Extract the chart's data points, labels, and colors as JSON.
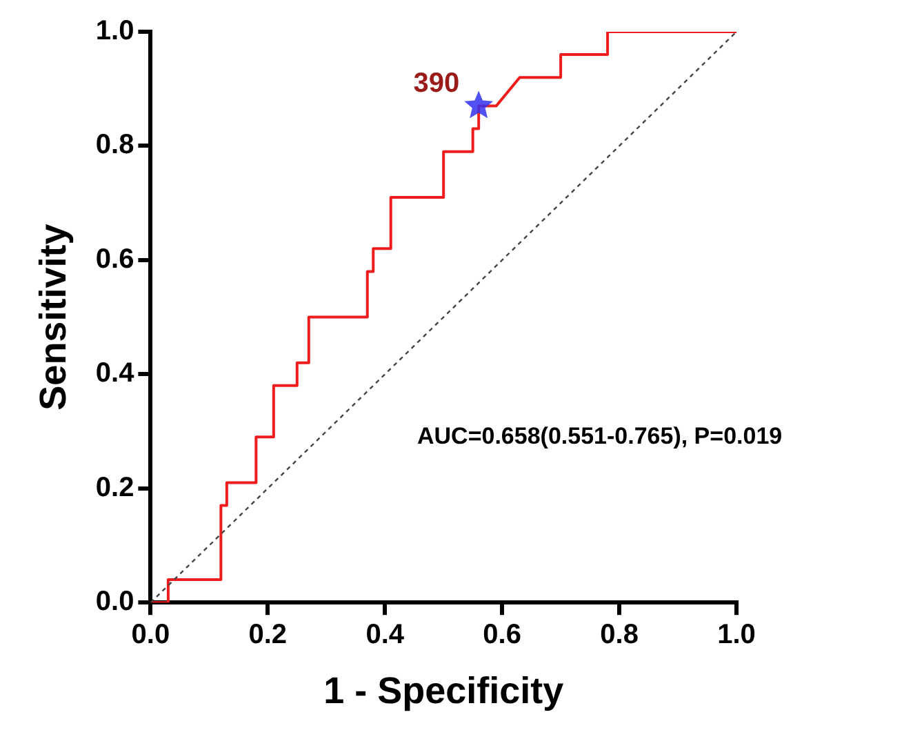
{
  "chart_data": {
    "type": "line",
    "xlabel": "1 - Specificity",
    "ylabel": "Sensitivity",
    "xlim": [
      0,
      1
    ],
    "ylim": [
      0,
      1
    ],
    "xticks": [
      {
        "value": 0,
        "label": "0.0"
      },
      {
        "value": 0.2,
        "label": "0.2"
      },
      {
        "value": 0.4,
        "label": "0.4"
      },
      {
        "value": 0.6,
        "label": "0.6"
      },
      {
        "value": 0.8,
        "label": "0.8"
      },
      {
        "value": 1,
        "label": "1.0"
      }
    ],
    "yticks": [
      {
        "value": 0,
        "label": "0.0"
      },
      {
        "value": 0.2,
        "label": "0.2"
      },
      {
        "value": 0.4,
        "label": "0.4"
      },
      {
        "value": 0.6,
        "label": "0.6"
      },
      {
        "value": 0.8,
        "label": "0.8"
      },
      {
        "value": 1,
        "label": "1.0"
      }
    ],
    "grid": false,
    "legend": false,
    "series": [
      {
        "color": "#ee1c1c",
        "marker": "none",
        "line_style": "solid",
        "x": [
          0,
          0.03,
          0.03,
          0.12,
          0.12,
          0.13,
          0.13,
          0.18,
          0.18,
          0.21,
          0.21,
          0.25,
          0.25,
          0.27,
          0.27,
          0.37,
          0.37,
          0.38,
          0.38,
          0.41,
          0.41,
          0.5,
          0.5,
          0.55,
          0.55,
          0.56,
          0.56,
          0.59,
          0.63,
          0.7,
          0.7,
          0.78,
          0.78,
          1.0
        ],
        "values": [
          0,
          0,
          0.04,
          0.04,
          0.17,
          0.17,
          0.21,
          0.21,
          0.29,
          0.29,
          0.38,
          0.38,
          0.42,
          0.42,
          0.5,
          0.5,
          0.58,
          0.58,
          0.62,
          0.62,
          0.71,
          0.71,
          0.79,
          0.79,
          0.83,
          0.83,
          0.87,
          0.87,
          0.92,
          0.92,
          0.96,
          0.96,
          1.0,
          1.0
        ]
      },
      {
        "color": "#444444",
        "marker": "none",
        "line_style": "dotted",
        "x": [
          0,
          1
        ],
        "values": [
          0,
          1
        ]
      },
      {
        "type": "scatter",
        "color": "#3333ee",
        "marker": "star",
        "x": [
          0.56
        ],
        "values": [
          0.87
        ]
      }
    ],
    "annotations": [
      {
        "text": "390",
        "x": 0.56,
        "y": 0.87
      },
      "AUC=0.658(0.551-0.765), P=0.019"
    ]
  }
}
